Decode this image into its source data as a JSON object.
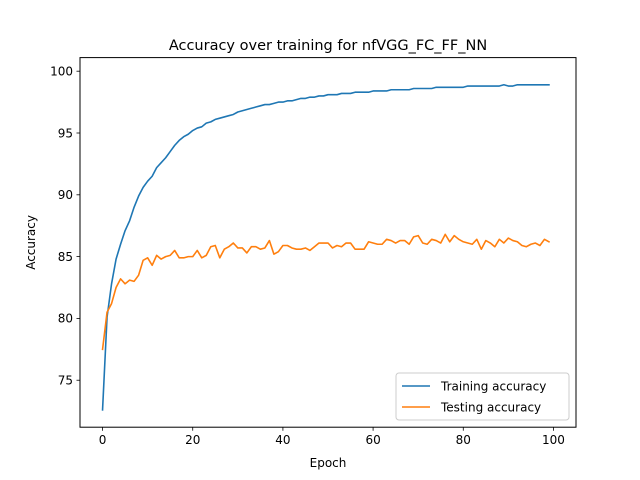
{
  "chart_data": {
    "type": "line",
    "title": "Accuracy over training for nfVGG_FC_FF_NN",
    "xlabel": "Epoch",
    "ylabel": "Accuracy",
    "xlim": [
      -5,
      105
    ],
    "ylim": [
      71.2,
      101.1
    ],
    "xticks": [
      0,
      20,
      40,
      60,
      80,
      100
    ],
    "yticks": [
      75,
      80,
      85,
      90,
      95,
      100
    ],
    "grid": false,
    "legend_position": "lower-right",
    "x": [
      0,
      1,
      2,
      3,
      4,
      5,
      6,
      7,
      8,
      9,
      10,
      11,
      12,
      13,
      14,
      15,
      16,
      17,
      18,
      19,
      20,
      21,
      22,
      23,
      24,
      25,
      26,
      27,
      28,
      29,
      30,
      31,
      32,
      33,
      34,
      35,
      36,
      37,
      38,
      39,
      40,
      41,
      42,
      43,
      44,
      45,
      46,
      47,
      48,
      49,
      50,
      51,
      52,
      53,
      54,
      55,
      56,
      57,
      58,
      59,
      60,
      61,
      62,
      63,
      64,
      65,
      66,
      67,
      68,
      69,
      70,
      71,
      72,
      73,
      74,
      75,
      76,
      77,
      78,
      79,
      80,
      81,
      82,
      83,
      84,
      85,
      86,
      87,
      88,
      89,
      90,
      91,
      92,
      93,
      94,
      95,
      96,
      97,
      98,
      99
    ],
    "series": [
      {
        "name": "Training accuracy",
        "color": "#1f77b4",
        "values": [
          72.6,
          80.1,
          82.8,
          84.8,
          86.0,
          87.1,
          87.9,
          89.0,
          89.9,
          90.6,
          91.1,
          91.5,
          92.2,
          92.6,
          93.0,
          93.5,
          94.0,
          94.4,
          94.7,
          94.9,
          95.2,
          95.4,
          95.5,
          95.8,
          95.9,
          96.1,
          96.2,
          96.3,
          96.4,
          96.5,
          96.7,
          96.8,
          96.9,
          97.0,
          97.1,
          97.2,
          97.3,
          97.3,
          97.4,
          97.5,
          97.5,
          97.6,
          97.6,
          97.7,
          97.8,
          97.8,
          97.9,
          97.9,
          98.0,
          98.0,
          98.1,
          98.1,
          98.1,
          98.2,
          98.2,
          98.2,
          98.3,
          98.3,
          98.3,
          98.3,
          98.4,
          98.4,
          98.4,
          98.4,
          98.5,
          98.5,
          98.5,
          98.5,
          98.5,
          98.6,
          98.6,
          98.6,
          98.6,
          98.6,
          98.7,
          98.7,
          98.7,
          98.7,
          98.7,
          98.7,
          98.7,
          98.8,
          98.8,
          98.8,
          98.8,
          98.8,
          98.8,
          98.8,
          98.8,
          98.9,
          98.8,
          98.8,
          98.9,
          98.9,
          98.9,
          98.9,
          98.9,
          98.9,
          98.9,
          98.9
        ]
      },
      {
        "name": "Testing accuracy",
        "color": "#ff7f0e",
        "values": [
          77.5,
          80.5,
          81.2,
          82.5,
          83.2,
          82.8,
          83.1,
          83.0,
          83.5,
          84.7,
          84.9,
          84.3,
          85.1,
          84.8,
          85.0,
          85.1,
          85.5,
          84.9,
          84.9,
          85.0,
          85.0,
          85.5,
          84.9,
          85.1,
          85.8,
          85.9,
          84.9,
          85.6,
          85.8,
          86.1,
          85.7,
          85.7,
          85.3,
          85.8,
          85.8,
          85.6,
          85.7,
          86.3,
          85.2,
          85.4,
          85.9,
          85.9,
          85.7,
          85.6,
          85.6,
          85.7,
          85.5,
          85.8,
          86.1,
          86.1,
          86.1,
          85.7,
          85.9,
          85.8,
          86.1,
          86.1,
          85.6,
          85.6,
          85.6,
          86.2,
          86.1,
          86.0,
          86.0,
          86.4,
          86.3,
          86.1,
          86.3,
          86.3,
          86.0,
          86.6,
          86.7,
          86.1,
          86.0,
          86.4,
          86.3,
          86.1,
          86.8,
          86.2,
          86.7,
          86.4,
          86.2,
          86.1,
          86.0,
          86.4,
          85.6,
          86.3,
          86.1,
          85.8,
          86.4,
          86.1,
          86.5,
          86.3,
          86.2,
          85.9,
          85.8,
          86.0,
          86.1,
          85.9,
          86.4,
          86.2
        ]
      }
    ]
  }
}
